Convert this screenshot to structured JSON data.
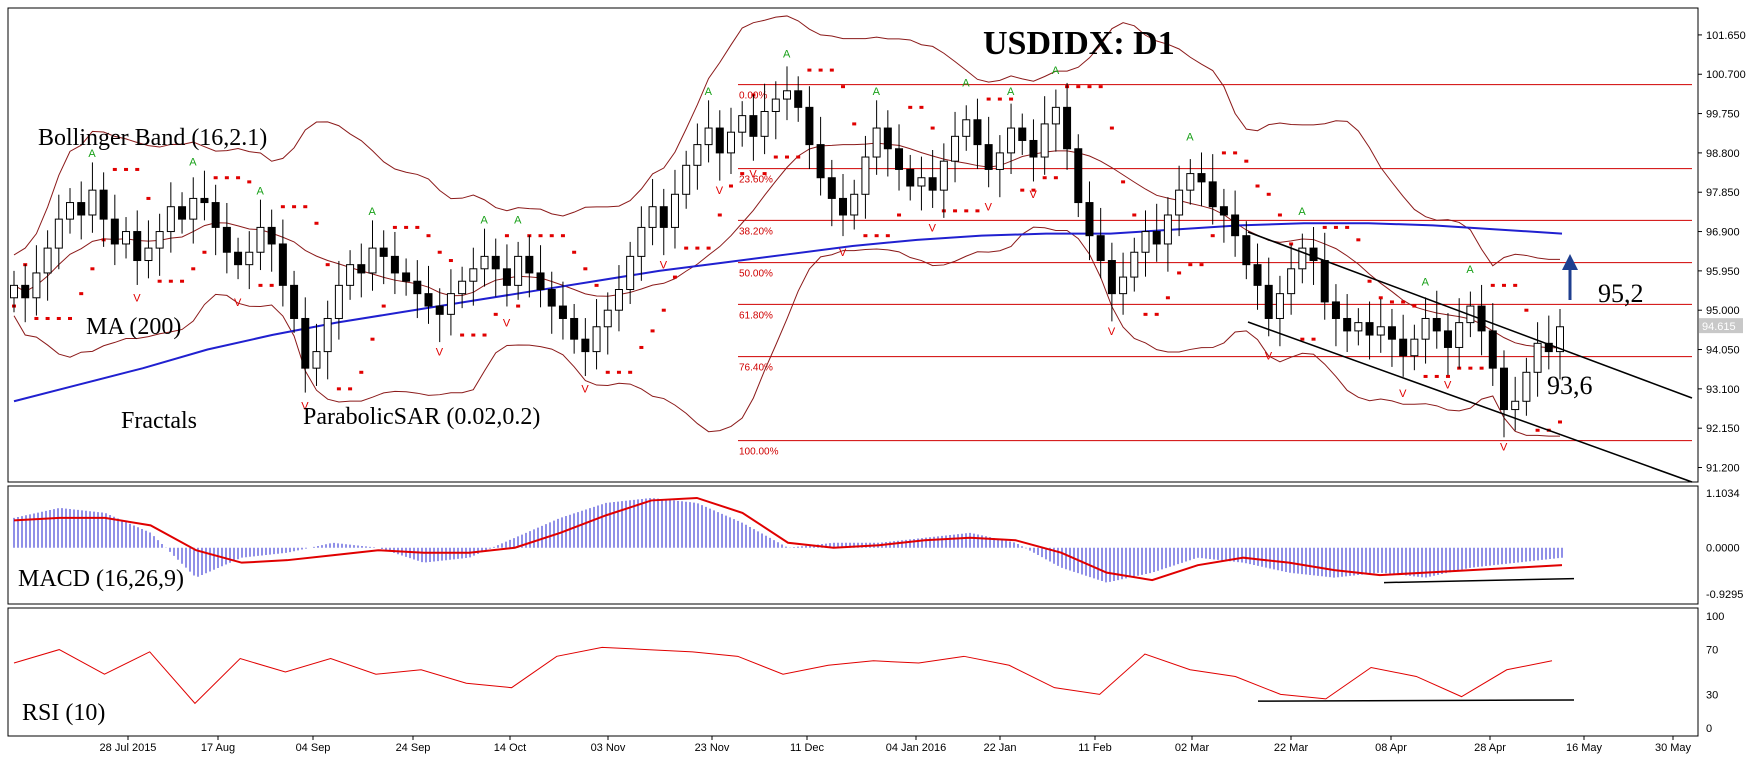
{
  "chart_data": {
    "type": "candlestick",
    "title": "USDIDX: D1",
    "x_labels": [
      "28 Jul 2015",
      "17 Aug",
      "04 Sep",
      "24 Sep",
      "14 Oct",
      "03 Nov",
      "23 Nov",
      "11 Dec",
      "04 Jan 2016",
      "22 Jan",
      "11 Feb",
      "02 Mar",
      "22 Mar",
      "08 Apr",
      "28 Apr",
      "16 May",
      "30 May"
    ],
    "price_axis": {
      "ticks": [
        "101.650",
        "100.700",
        "99.750",
        "98.800",
        "97.850",
        "96.900",
        "95.950",
        "95.000",
        "94.050",
        "93.100",
        "92.150",
        "91.200"
      ],
      "range": [
        90.85,
        102.3
      ],
      "current_price_label": "94.615",
      "current_price": 94.615
    },
    "indicator_labels": {
      "bollinger": "Bollinger Band (16,2.1)",
      "ma": "MA (200)",
      "fractals": "Fractals",
      "sar": "ParabolicSAR (0.02,0.2)",
      "macd": "MACD (16,26,9)",
      "rsi": "RSI (10)"
    },
    "annotations": {
      "resistance": "95,2",
      "support": "93,6"
    },
    "fibonacci": {
      "high": 100.45,
      "low": 91.85,
      "levels": [
        {
          "label": "0.00%",
          "value": 100.45
        },
        {
          "label": "23.60%",
          "value": 98.42
        },
        {
          "label": "38.20%",
          "value": 97.17
        },
        {
          "label": "50.00%",
          "value": 96.15
        },
        {
          "label": "61.80%",
          "value": 95.14
        },
        {
          "label": "76.40%",
          "value": 93.88
        },
        {
          "label": "100.00%",
          "value": 91.85
        }
      ]
    },
    "macd_axis": {
      "ticks": [
        "1.1034",
        "0.0000",
        "-0.9295"
      ],
      "range": [
        -1.13,
        1.24
      ]
    },
    "rsi_axis": {
      "ticks": [
        "100",
        "70",
        "30",
        "0"
      ],
      "range": [
        0,
        100
      ]
    },
    "close_series": [
      95.6,
      95.3,
      95.9,
      96.5,
      97.2,
      97.6,
      97.3,
      97.9,
      97.2,
      96.6,
      96.9,
      96.2,
      96.5,
      96.9,
      97.5,
      97.2,
      97.7,
      97.6,
      97.0,
      96.4,
      96.1,
      96.4,
      97.0,
      96.6,
      95.6,
      94.8,
      93.6,
      94.0,
      94.8,
      95.6,
      96.1,
      95.9,
      96.5,
      96.3,
      95.9,
      95.7,
      95.4,
      95.1,
      94.9,
      95.4,
      95.7,
      96.0,
      96.3,
      96.0,
      95.6,
      96.3,
      95.9,
      95.5,
      95.1,
      94.8,
      94.3,
      94.0,
      94.6,
      95.0,
      95.5,
      96.3,
      97.0,
      97.5,
      97.0,
      97.8,
      98.5,
      99.0,
      99.4,
      98.8,
      99.3,
      99.7,
      99.2,
      99.8,
      100.1,
      100.3,
      99.9,
      99.0,
      98.2,
      97.7,
      97.3,
      97.8,
      98.7,
      99.4,
      98.9,
      98.4,
      98.0,
      98.2,
      97.9,
      98.6,
      99.2,
      99.6,
      99.0,
      98.4,
      98.8,
      99.4,
      99.1,
      98.7,
      99.5,
      99.9,
      98.9,
      97.6,
      96.8,
      96.2,
      95.4,
      95.8,
      96.4,
      96.9,
      96.6,
      97.3,
      97.9,
      98.3,
      98.1,
      97.5,
      97.3,
      96.8,
      96.1,
      95.6,
      94.8,
      95.4,
      96.0,
      96.5,
      96.2,
      95.2,
      94.8,
      94.5,
      94.7,
      94.4,
      94.6,
      94.3,
      93.9,
      94.3,
      94.8,
      94.5,
      94.1,
      94.7,
      95.1,
      94.5,
      93.6,
      92.6,
      92.8,
      93.5,
      94.2,
      94.0,
      94.6
    ],
    "ma200_series": [
      92.8,
      93.2,
      93.6,
      94.05,
      94.4,
      94.7,
      94.95,
      95.2,
      95.45,
      95.7,
      95.95,
      96.15,
      96.35,
      96.55,
      96.7,
      96.8,
      96.85,
      96.85,
      96.95,
      97.05,
      97.1,
      97.1,
      97.05,
      96.95,
      96.85
    ],
    "macd_series": [
      0.6,
      0.8,
      0.7,
      0.3,
      -0.6,
      -0.2,
      -0.1,
      0.1,
      0.0,
      -0.3,
      -0.2,
      0.2,
      0.6,
      0.9,
      1.0,
      0.9,
      0.5,
      0.0,
      0.1,
      0.1,
      0.2,
      0.3,
      0.1,
      -0.4,
      -0.7,
      -0.5,
      -0.2,
      -0.3,
      -0.5,
      -0.6,
      -0.5,
      -0.6,
      -0.4,
      -0.3,
      -0.2
    ],
    "signal_series": [
      0.55,
      0.6,
      0.6,
      0.45,
      -0.05,
      -0.3,
      -0.25,
      -0.15,
      -0.05,
      -0.1,
      -0.1,
      0.0,
      0.3,
      0.65,
      0.95,
      1.0,
      0.7,
      0.1,
      0.0,
      0.05,
      0.15,
      0.2,
      0.15,
      -0.1,
      -0.5,
      -0.65,
      -0.35,
      -0.2,
      -0.3,
      -0.45,
      -0.55,
      -0.5,
      -0.45,
      -0.4,
      -0.35
    ],
    "rsi_series": [
      58,
      70,
      48,
      68,
      22,
      62,
      50,
      62,
      48,
      52,
      40,
      36,
      64,
      72,
      70,
      68,
      64,
      48,
      56,
      60,
      58,
      64,
      56,
      36,
      30,
      66,
      52,
      46,
      30,
      26,
      54,
      46,
      28,
      52,
      60
    ]
  }
}
